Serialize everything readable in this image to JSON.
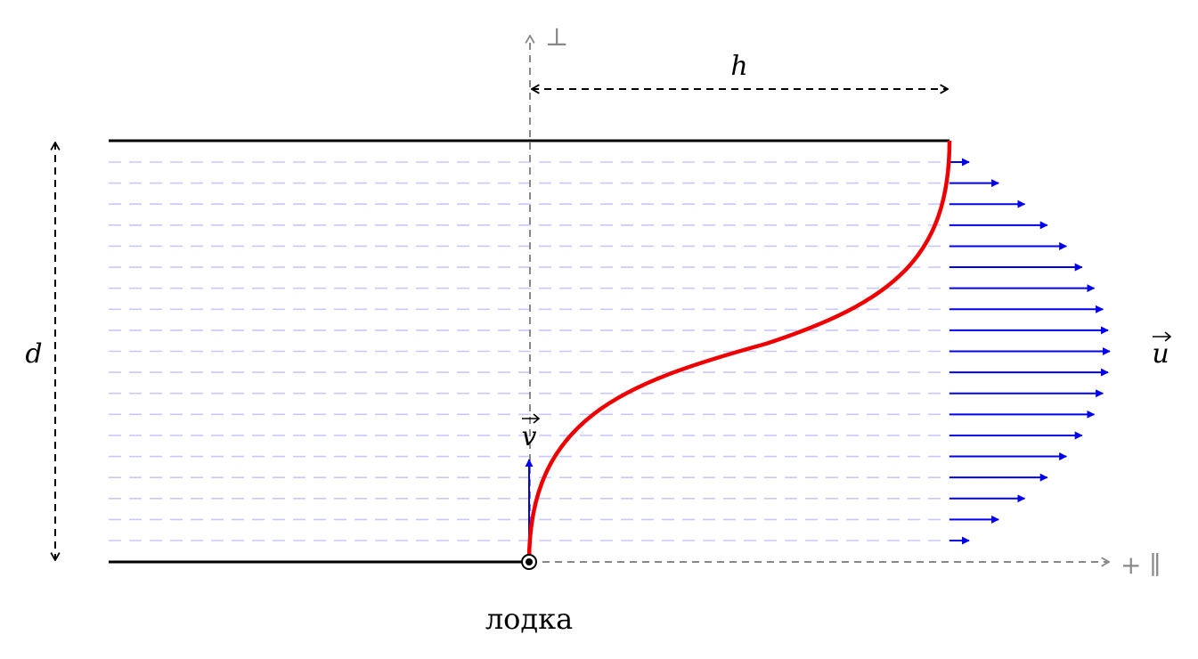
{
  "labels": {
    "width": "h",
    "depth": "d",
    "flow_velocity": "u",
    "boat_velocity": "v",
    "perpendicular_axis": "⊥",
    "parallel_axis": "+ ∥",
    "boat": "лодка"
  },
  "flow_profile": {
    "arrow_count": 19,
    "shape": "parabolic, maximum at mid-river"
  },
  "colors": {
    "banks": "#000000",
    "trajectory": "#ee0000",
    "flow_arrows": "#0000ee",
    "water_lines": "#c8c8ff",
    "axes": "#888888",
    "dimensions": "#000000"
  },
  "icons": {
    "boat_marker": "circled-dot-icon"
  }
}
